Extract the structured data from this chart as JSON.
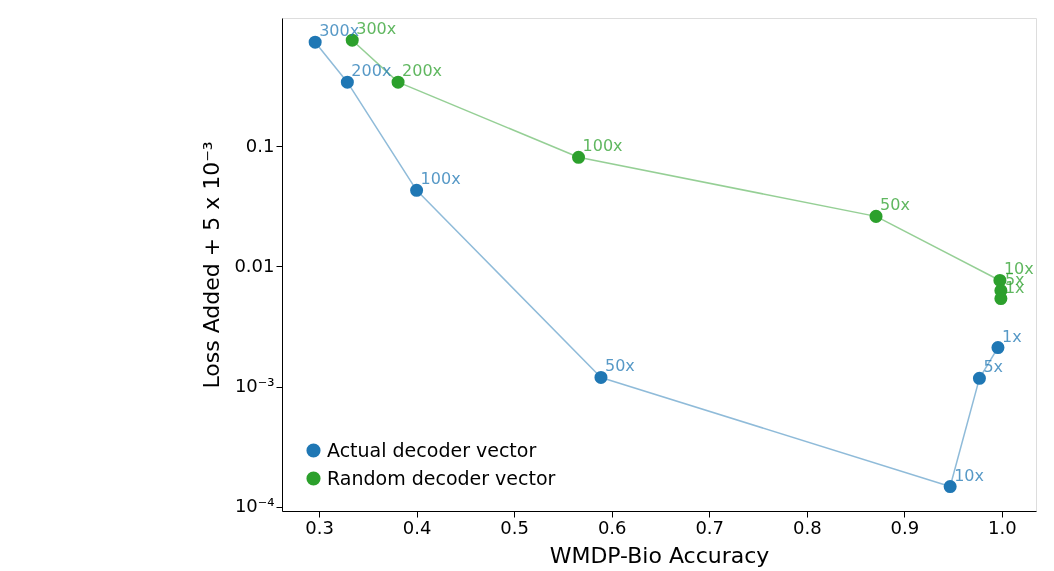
{
  "chart_data": {
    "type": "line",
    "xlabel": "WMDP-Bio Accuracy",
    "ylabel": "Loss Added + 5 x 10⁻³",
    "log": "y",
    "grid": false,
    "marker": "circle",
    "legend": "bottom left",
    "xlim": [
      0.262,
      1.035
    ],
    "ylim": [
      9.2e-05,
      1.17
    ],
    "xticks": [
      0.3,
      0.4,
      0.5,
      0.6,
      0.7,
      0.8,
      0.9,
      {
        "value": 1.0,
        "label": "1.0"
      }
    ],
    "yticks": [
      {
        "value": 0.0001,
        "label": "10⁻⁴"
      },
      {
        "value": 0.001,
        "label": "10⁻³"
      },
      0.01,
      0.1
    ],
    "series": [
      {
        "name": "Actual decoder vector",
        "color": "#1f77b4",
        "x": [
          0.296,
          0.329,
          0.4,
          0.589,
          0.947,
          0.977,
          0.996
        ],
        "values": [
          0.736,
          0.342,
          0.043,
          0.00119,
          0.000147,
          0.00117,
          0.00211
        ]
      },
      {
        "name": "Random decoder vector",
        "color": "#2ca02c",
        "x": [
          0.334,
          0.381,
          0.566,
          0.871,
          0.998,
          0.999,
          0.999
        ],
        "values": [
          0.764,
          0.342,
          0.081,
          0.0261,
          0.00764,
          0.0063,
          0.0054
        ]
      }
    ],
    "annotations": [
      {
        "text": "300x",
        "x": 0.296,
        "y": 0.736
      },
      {
        "text": "200x",
        "x": 0.329,
        "y": 0.342
      },
      {
        "text": "100x",
        "x": 0.4,
        "y": 0.043
      },
      {
        "text": "50x",
        "x": 0.589,
        "y": 0.00119
      },
      {
        "text": "10x",
        "x": 0.947,
        "y": 0.000147
      },
      {
        "text": "5x",
        "x": 0.977,
        "y": 0.00117
      },
      {
        "text": "1x",
        "x": 0.996,
        "y": 0.00211
      },
      {
        "text": "300x",
        "x": 0.334,
        "y": 0.764
      },
      {
        "text": "200x",
        "x": 0.381,
        "y": 0.342
      },
      {
        "text": "100x",
        "x": 0.566,
        "y": 0.081
      },
      {
        "text": "50x",
        "x": 0.871,
        "y": 0.0261
      },
      {
        "text": "10x",
        "x": 0.998,
        "y": 0.00764
      },
      {
        "text": "5x",
        "x": 0.999,
        "y": 0.0063
      },
      {
        "text": "1x",
        "x": 0.999,
        "y": 0.0054
      }
    ]
  }
}
